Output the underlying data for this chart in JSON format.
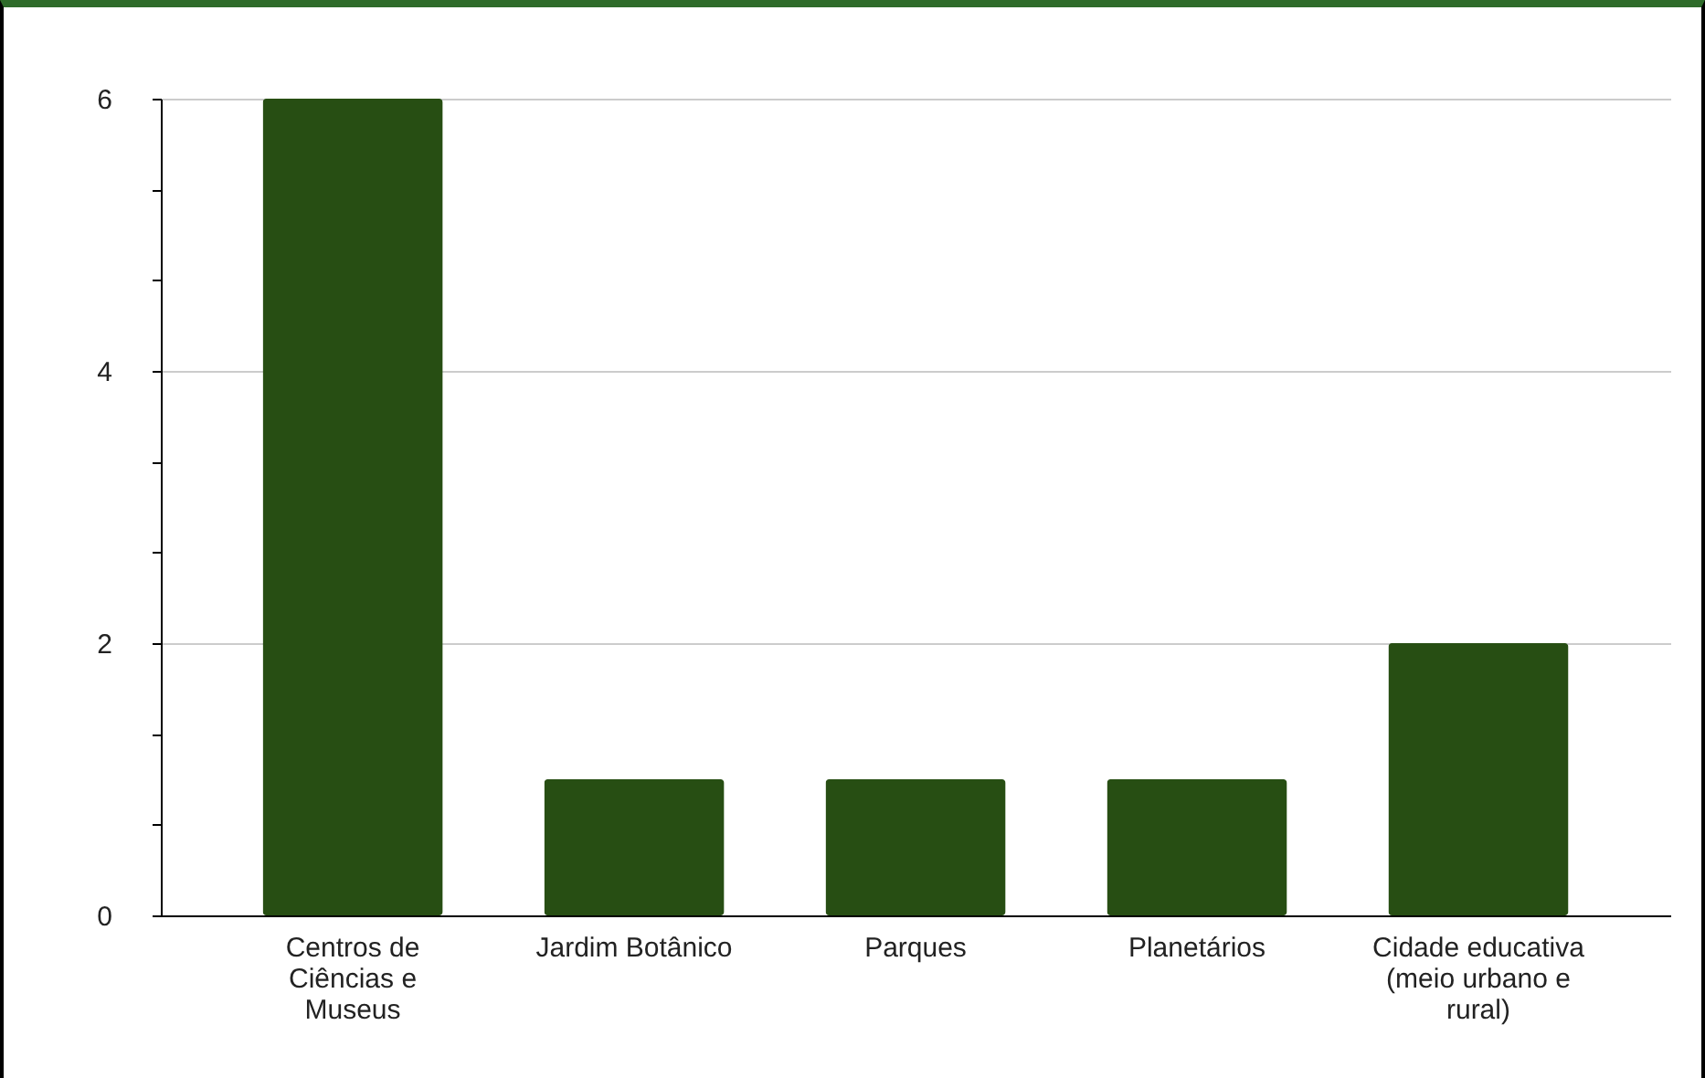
{
  "chart_data": {
    "type": "bar",
    "categories": [
      "Centros de Ciências e Museus",
      "Jardim Botânico",
      "Parques",
      "Planetários",
      "Cidade educativa (meio urbano e rural)"
    ],
    "values": [
      6,
      1,
      1,
      1,
      2
    ],
    "color": "#274e13",
    "ylim": [
      0,
      6
    ],
    "yticks": [
      0,
      {
        "value": 0.667,
        "label": null
      },
      {
        "value": 1.333,
        "label": null
      },
      2,
      {
        "value": 2.667,
        "label": null
      },
      {
        "value": 3.333,
        "label": null
      },
      4,
      {
        "value": 4.667,
        "label": null
      },
      {
        "value": 5.333,
        "label": null
      },
      6
    ],
    "grid": "y"
  }
}
